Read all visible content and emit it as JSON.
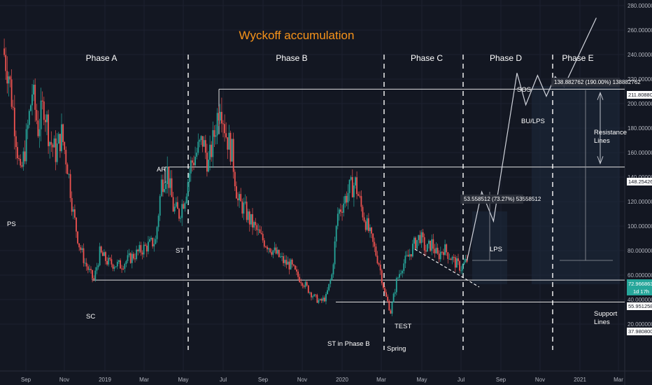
{
  "chart_data": {
    "type": "candlestick",
    "title": "Wyckoff accumulation",
    "ylim": [
      0,
      280
    ],
    "y_ticks": [
      "280.000000",
      "260.000000",
      "240.000000",
      "220.000000",
      "200.000000",
      "180.000000",
      "160.000000",
      "140.000000",
      "120.000000",
      "100.000000",
      "80.000000",
      "60.000000",
      "40.000000",
      "20.000000"
    ],
    "x_ticks": [
      "Sep",
      "Nov",
      "2019",
      "Mar",
      "May",
      "Jul",
      "Sep",
      "Nov",
      "2020",
      "Mar",
      "May",
      "Jul",
      "Sep",
      "Nov",
      "2021",
      "Mar"
    ],
    "price_tags": {
      "resistance_high": "211.808800",
      "resistance_low": "148.254265",
      "support_high": "55.951258",
      "support_low": "37.980800",
      "current": "72.966863",
      "countdown": "1d 17h"
    },
    "phases": [
      "Phase A",
      "Phase B",
      "Phase C",
      "Phase D",
      "Phase E"
    ],
    "events": {
      "ps": "PS",
      "sc": "SC",
      "ar": "AR",
      "st": "ST",
      "st_phase_b": "ST in Phase B",
      "spring": "Spring",
      "test": "TEST",
      "lps": "LPS",
      "sos": "SOS",
      "bu_lps": "BU/LPS"
    },
    "measure_boxes": {
      "small": "53.558512 (73.27%) 53558512",
      "large": "138.882762 (190.00%) 138882762"
    },
    "side_labels": {
      "resistance_line1": "Resistance",
      "resistance_line2": "Lines",
      "support_line1": "Support",
      "support_line2": "Lines"
    },
    "levels": {
      "resistance_high": 211.8,
      "resistance_low": 148.25,
      "support_high": 55.95,
      "support_low": 37.98
    },
    "price_path": [
      [
        0,
        245
      ],
      [
        2,
        225
      ],
      [
        4,
        185
      ],
      [
        6,
        140
      ],
      [
        8,
        170
      ],
      [
        10,
        210
      ],
      [
        12,
        180
      ],
      [
        14,
        200
      ],
      [
        16,
        170
      ],
      [
        18,
        160
      ],
      [
        20,
        175
      ],
      [
        22,
        150
      ],
      [
        24,
        110
      ],
      [
        26,
        85
      ],
      [
        28,
        70
      ],
      [
        30,
        60
      ],
      [
        31,
        56
      ],
      [
        33,
        78
      ],
      [
        36,
        70
      ],
      [
        40,
        68
      ],
      [
        44,
        75
      ],
      [
        48,
        82
      ],
      [
        52,
        88
      ],
      [
        54,
        135
      ],
      [
        56,
        145
      ],
      [
        58,
        115
      ],
      [
        60,
        110
      ],
      [
        62,
        125
      ],
      [
        64,
        150
      ],
      [
        66,
        160
      ],
      [
        68,
        170
      ],
      [
        70,
        150
      ],
      [
        72,
        175
      ],
      [
        74,
        205
      ],
      [
        76,
        175
      ],
      [
        78,
        160
      ],
      [
        80,
        120
      ],
      [
        82,
        115
      ],
      [
        84,
        105
      ],
      [
        86,
        98
      ],
      [
        88,
        90
      ],
      [
        90,
        85
      ],
      [
        92,
        80
      ],
      [
        94,
        75
      ],
      [
        96,
        70
      ],
      [
        98,
        68
      ],
      [
        100,
        60
      ],
      [
        102,
        55
      ],
      [
        104,
        48
      ],
      [
        106,
        42
      ],
      [
        108,
        38
      ],
      [
        110,
        42
      ],
      [
        112,
        60
      ],
      [
        114,
        110
      ],
      [
        116,
        120
      ],
      [
        118,
        130
      ],
      [
        120,
        135
      ],
      [
        122,
        115
      ],
      [
        124,
        100
      ],
      [
        126,
        85
      ],
      [
        128,
        70
      ],
      [
        130,
        45
      ],
      [
        131,
        38
      ],
      [
        132,
        30
      ],
      [
        134,
        55
      ],
      [
        136,
        68
      ],
      [
        138,
        75
      ],
      [
        140,
        85
      ],
      [
        142,
        92
      ],
      [
        144,
        80
      ],
      [
        146,
        86
      ],
      [
        148,
        75
      ],
      [
        150,
        82
      ],
      [
        152,
        76
      ],
      [
        154,
        70
      ],
      [
        156,
        66
      ],
      [
        158,
        72
      ]
    ],
    "projection_path": [
      [
        158,
        72
      ],
      [
        163,
        128
      ],
      [
        167,
        104
      ],
      [
        175,
        225
      ],
      [
        178,
        199
      ],
      [
        182,
        223
      ],
      [
        185,
        206
      ],
      [
        188,
        222
      ],
      [
        191,
        214
      ],
      [
        202,
        270
      ]
    ]
  }
}
